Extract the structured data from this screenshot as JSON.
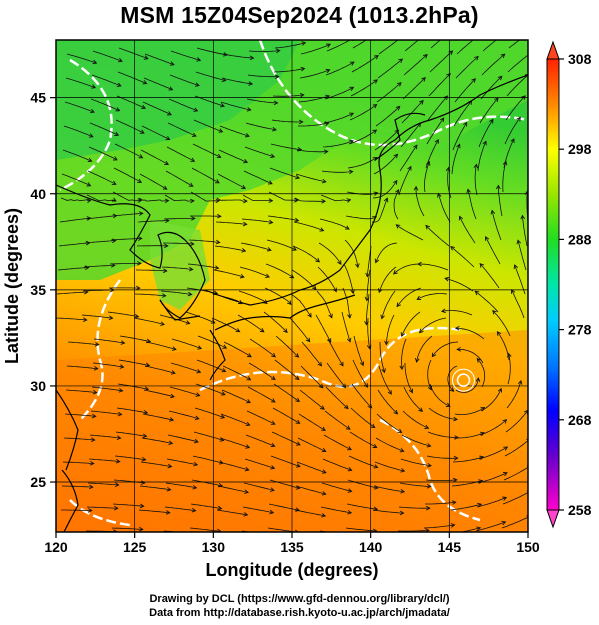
{
  "title": "MSM 15Z04Sep2024 (1013.2hPa)",
  "map": {
    "xlabel": "Longitude (degrees)",
    "ylabel": "Latitude  (degrees)",
    "lon_range": [
      120,
      150
    ],
    "lat_range": [
      22.4,
      48
    ],
    "lon_ticks": [
      120,
      125,
      130,
      135,
      140,
      145,
      150
    ],
    "lat_ticks": [
      25,
      30,
      35,
      40,
      45
    ],
    "lon_tick_labels": [
      "120",
      "125",
      "130",
      "135",
      "140",
      "145",
      "150"
    ],
    "lat_tick_labels": [
      "25",
      "30",
      "35",
      "40",
      "45"
    ],
    "grid": true,
    "field": "temperature (K) with wind streamlines",
    "vortex_center": {
      "lon": 145.9,
      "lat": 30.3
    }
  },
  "colorbar": {
    "range": [
      258,
      308
    ],
    "tick_values": [
      308,
      298,
      288,
      278,
      268,
      258
    ],
    "tick_labels": [
      "308",
      "298",
      "288",
      "278",
      "268",
      "258"
    ],
    "colors": [
      "#ff00ff",
      "#6600cc",
      "#0000ff",
      "#0066ff",
      "#00ccff",
      "#00e6cc",
      "#00ff66",
      "#33dd00",
      "#99e600",
      "#ffff00",
      "#ffaa00",
      "#ff6600",
      "#ff2200"
    ]
  },
  "credit": {
    "line1": "Drawing by DCL (https://www.gfd-dennou.org/library/dcl/)",
    "line2": "Data from http://database.rish.kyoto-u.ac.jp/arch/jmadata/"
  }
}
